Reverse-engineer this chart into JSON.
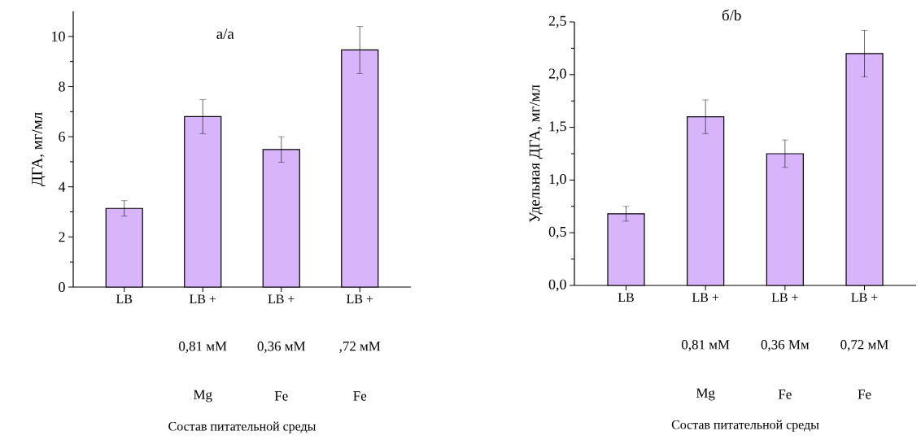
{
  "chart_data": [
    {
      "type": "bar",
      "title": "а/a",
      "xlabel": "Состав питательной среды",
      "ylabel": "ДГА, мг/мл",
      "categories": [
        "LB",
        "LB +",
        "LB +",
        "LB +"
      ],
      "values": [
        3.14,
        6.8,
        5.49,
        9.46
      ],
      "errors": [
        0.31,
        0.68,
        0.51,
        0.94
      ],
      "color": "#d8b4fa",
      "ylim": [
        0,
        11
      ],
      "yticks": [
        0,
        2,
        4,
        6,
        8,
        10
      ],
      "annotations": [
        "0,81 мМ",
        "0,36 мМ",
        ",72 мМ",
        "Mg",
        "Fe",
        "Fe"
      ]
    },
    {
      "type": "bar",
      "title": "б/b",
      "xlabel": "Состав питательной среды",
      "ylabel": "Удельная ДГА, мг/мл",
      "categories": [
        "LB",
        "LB +",
        "LB +",
        "LB +"
      ],
      "values": [
        0.68,
        1.6,
        1.25,
        2.2
      ],
      "errors": [
        0.07,
        0.16,
        0.13,
        0.22
      ],
      "color": "#d8b4fa",
      "ylim": [
        0,
        2.5
      ],
      "yticks": [
        {
          "value": 0,
          "label": "0,0"
        },
        {
          "value": 0.5,
          "label": "0,5"
        },
        {
          "value": 1,
          "label": "1,0"
        },
        {
          "value": 1.5,
          "label": "1,5"
        },
        {
          "value": 2,
          "label": "2,0"
        },
        {
          "value": 2.5,
          "label": "2,5"
        }
      ],
      "annotations": [
        "0,81 мМ",
        "0,36 Мм",
        "0,72 мМ",
        "Mg",
        "Fe",
        "Fe"
      ]
    }
  ]
}
